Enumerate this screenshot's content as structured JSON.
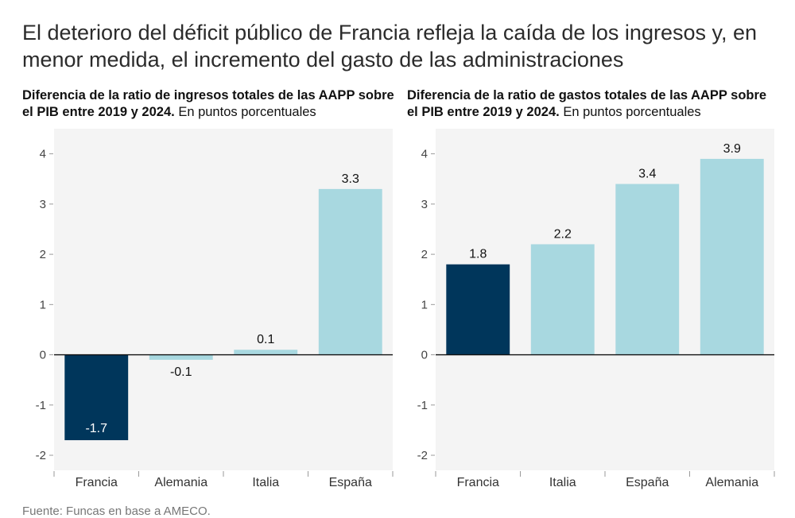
{
  "title": "El deterioro del déficit público de Francia refleja la caída de los ingresos y, en menor medida, el incremento del gasto de las administraciones",
  "source": "Fuente: Funcas en base a AMECO.",
  "colors": {
    "highlight": "#00365b",
    "other": "#a8d8e0",
    "panel": "#f4f4f4",
    "axis": "#111111"
  },
  "chart_data": [
    {
      "type": "bar",
      "title_bold": "Diferencia de la ratio de ingresos totales de las AAPP sobre el PIB entre 2019 y 2024.",
      "title_normal": "En puntos porcentuales",
      "categories": [
        "Francia",
        "Alemania",
        "Italia",
        "España"
      ],
      "values": [
        -1.7,
        -0.1,
        0.1,
        3.3
      ],
      "value_labels": [
        "-1.7",
        "-0.1",
        "0.1",
        "3.3"
      ],
      "highlight": "Francia",
      "ylim": [
        -2.3,
        4.5
      ],
      "yticks": [
        -2,
        -1,
        0,
        1,
        2,
        3,
        4
      ],
      "xlabel": "",
      "ylabel": ""
    },
    {
      "type": "bar",
      "title_bold": "Diferencia de la ratio de gastos totales de las AAPP sobre el PIB entre 2019 y 2024.",
      "title_normal": "En puntos porcentuales",
      "categories": [
        "Francia",
        "Italia",
        "España",
        "Alemania"
      ],
      "values": [
        1.8,
        2.2,
        3.4,
        3.9
      ],
      "value_labels": [
        "1.8",
        "2.2",
        "3.4",
        "3.9"
      ],
      "highlight": "Francia",
      "ylim": [
        -2.3,
        4.5
      ],
      "yticks": [
        -2,
        -1,
        0,
        1,
        2,
        3,
        4
      ],
      "xlabel": "",
      "ylabel": ""
    }
  ]
}
